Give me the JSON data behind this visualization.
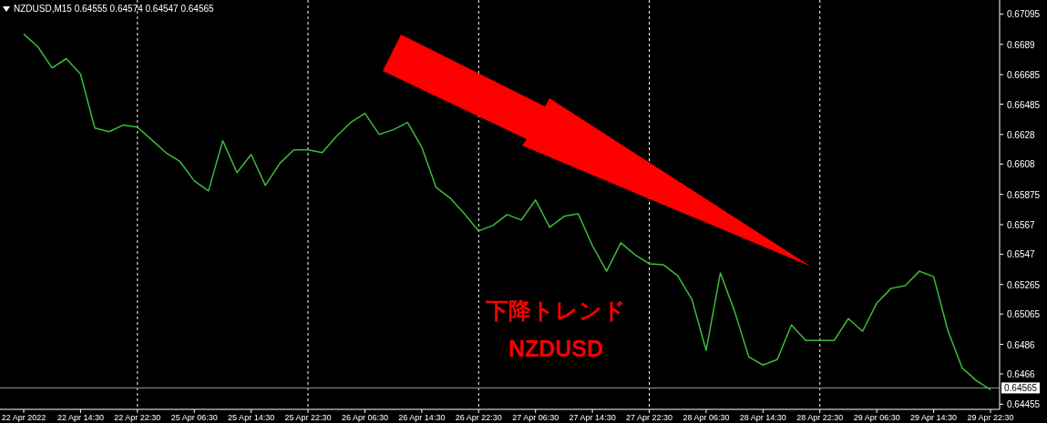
{
  "chart_data": {
    "type": "line",
    "title": "NZDUSD,M15  0.64555 0.64574 0.64547 0.64565",
    "annotations": [
      "下降トレンド",
      "NZDUSD"
    ],
    "categories": [
      "22 Apr 2022",
      null,
      null,
      null,
      "22 Apr 14:30",
      null,
      null,
      null,
      "22 Apr 22:30",
      null,
      null,
      null,
      "25 Apr 06:30",
      null,
      null,
      null,
      "25 Apr 14:30",
      null,
      null,
      null,
      "25 Apr 22:30",
      null,
      null,
      null,
      "26 Apr 06:30",
      null,
      null,
      null,
      "26 Apr 14:30",
      null,
      null,
      null,
      "26 Apr 22:30",
      null,
      null,
      null,
      "27 Apr 06:30",
      null,
      null,
      null,
      "27 Apr 14:30",
      null,
      null,
      null,
      "27 Apr 22:30",
      null,
      null,
      null,
      "28 Apr 06:30",
      null,
      null,
      null,
      "28 Apr 14:30",
      null,
      null,
      null,
      "28 Apr 22:30",
      null,
      null,
      null,
      "29 Apr 06:30",
      null,
      null,
      null,
      "29 Apr 14:30",
      null,
      null,
      null,
      "29 Apr 22:30"
    ],
    "ylim": [
      0.6442,
      0.6719
    ],
    "yticks": [
      0.67095,
      0.6689,
      0.66685,
      0.66485,
      0.6628,
      0.6608,
      0.65875,
      0.6567,
      0.6547,
      0.65265,
      0.65065,
      0.6486,
      0.6466,
      0.64455
    ],
    "ref_lines": [
      {
        "axis": "x",
        "value": "22 Apr 22:30",
        "color": "#ffffff",
        "line_style": "dashed"
      },
      {
        "axis": "x",
        "value": "25 Apr 22:30",
        "color": "#ffffff",
        "line_style": "dashed"
      },
      {
        "axis": "x",
        "value": "26 Apr 22:30",
        "color": "#ffffff",
        "line_style": "dashed"
      },
      {
        "axis": "x",
        "value": "27 Apr 22:30",
        "color": "#ffffff",
        "line_style": "dashed"
      },
      {
        "axis": "x",
        "value": "28 Apr 22:30",
        "color": "#ffffff",
        "line_style": "dashed"
      },
      {
        "axis": "y",
        "value": 0.64565,
        "label": "0.64565",
        "color": "#7a9aaa",
        "line_style": "solid"
      }
    ],
    "series": [
      {
        "color": "#3dbb3d",
        "values": [
          0.6696,
          0.66873,
          0.66731,
          0.66793,
          0.66688,
          0.66324,
          0.66299,
          0.66343,
          0.6633,
          0.66244,
          0.66157,
          0.66096,
          0.65966,
          0.65898,
          0.66238,
          0.66022,
          0.66145,
          0.65935,
          0.66083,
          0.66176,
          0.66176,
          0.66157,
          0.66268,
          0.66361,
          0.66423,
          0.66281,
          0.66312,
          0.66361,
          0.66194,
          0.65923,
          0.65849,
          0.65744,
          0.65627,
          0.65664,
          0.65738,
          0.65701,
          0.65837,
          0.65652,
          0.65726,
          0.65744,
          0.65528,
          0.65355,
          0.65547,
          0.65466,
          0.65405,
          0.65398,
          0.65324,
          0.65164,
          0.64819,
          0.65343,
          0.65084,
          0.64775,
          0.6472,
          0.64757,
          0.64991,
          0.64886,
          0.64886,
          0.64886,
          0.65034,
          0.64948,
          0.65139,
          0.65238,
          0.65257,
          0.65355,
          0.65318,
          0.64954,
          0.64701,
          0.64615,
          0.64553
        ]
      }
    ]
  }
}
